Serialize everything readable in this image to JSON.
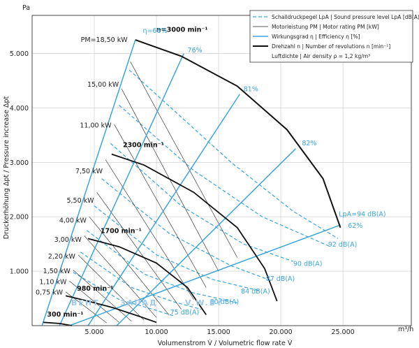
{
  "chart_data": {
    "type": "line",
    "title": "",
    "xlabel": "Volumenstrom V̇ / Volumetric flow rate V̇",
    "ylabel": "Druckerhöhung Δpt / Pressure increase Δpt",
    "x_unit": "m³/h",
    "y_unit": "Pa",
    "xlim": [
      0,
      30500
    ],
    "ylim": [
      0,
      5700
    ],
    "x_ticks": [
      {
        "value": 5000,
        "label": "5.000"
      },
      {
        "value": 10000,
        "label": "10.000"
      },
      {
        "value": 15000,
        "label": "15.000"
      },
      {
        "value": 20000,
        "label": "20.000"
      },
      {
        "value": 25000,
        "label": "25.000"
      }
    ],
    "y_ticks": [
      {
        "value": 1000,
        "label": "1.000"
      },
      {
        "value": 2000,
        "label": "2.000"
      },
      {
        "value": 3000,
        "label": "3.000"
      },
      {
        "value": 4000,
        "label": "4.000"
      },
      {
        "value": 5000,
        "label": "5.000"
      }
    ],
    "grid": true,
    "legend_position": "top-right",
    "legend": [
      {
        "style": "dashed-blue",
        "text": "Schalldruckpegel LpA | Sound pressure level LpA [dB(A)]"
      },
      {
        "style": "thin-black",
        "text": "Motorleistung PM | Motor rating PM [kW]"
      },
      {
        "style": "solid-blue",
        "text": "Wirkungsgrad η | Efficiency η [%]"
      },
      {
        "style": "thick-black",
        "text": "Drehzahl n | Number of revolutions n [min⁻¹]"
      },
      {
        "style": "none",
        "text": "Luftdichte | Air density ρ = 1,2 kg/m³"
      }
    ],
    "speed_curves": [
      {
        "label": "300 min⁻¹",
        "points": [
          [
            900,
            60
          ],
          [
            2200,
            40
          ],
          [
            3200,
            0
          ]
        ]
      },
      {
        "label": "980 min⁻¹",
        "points": [
          [
            2700,
            550
          ],
          [
            4500,
            450
          ],
          [
            6500,
            330
          ],
          [
            8500,
            180
          ],
          [
            10000,
            60
          ]
        ]
      },
      {
        "label": "1700 min⁻¹",
        "points": [
          [
            4500,
            1600
          ],
          [
            7000,
            1450
          ],
          [
            10000,
            1150
          ],
          [
            12500,
            700
          ],
          [
            14000,
            200
          ]
        ]
      },
      {
        "label": "2300 min⁻¹",
        "points": [
          [
            6400,
            3150
          ],
          [
            9000,
            2950
          ],
          [
            13000,
            2450
          ],
          [
            16500,
            1800
          ],
          [
            18700,
            1050
          ],
          [
            19700,
            450
          ]
        ]
      },
      {
        "label": "3000 min⁻¹",
        "points": [
          [
            8300,
            5250
          ],
          [
            12000,
            4950
          ],
          [
            16500,
            4400
          ],
          [
            20500,
            3600
          ],
          [
            23400,
            2700
          ],
          [
            24800,
            1800
          ]
        ]
      }
    ],
    "efficiency_lines": [
      {
        "label": "η=66%",
        "points": [
          [
            800,
            0
          ],
          [
            8300,
            5250
          ]
        ]
      },
      {
        "label": "76%",
        "points": [
          [
            2200,
            0
          ],
          [
            12200,
            5000
          ]
        ]
      },
      {
        "label": "81%",
        "points": [
          [
            4500,
            0
          ],
          [
            16700,
            4250
          ]
        ]
      },
      {
        "label": "82%",
        "points": [
          [
            6800,
            0
          ],
          [
            21200,
            3250
          ]
        ]
      },
      {
        "label": "62%",
        "points": [
          [
            3000,
            0
          ],
          [
            24800,
            1850
          ]
        ]
      }
    ],
    "power_labels": [
      {
        "text": "PM=18,50 kW",
        "value_kw": 18.5,
        "y": 5250
      },
      {
        "text": "15,00 kW",
        "value_kw": 15.0,
        "y": 4430
      },
      {
        "text": "11,00 kW",
        "value_kw": 11.0,
        "y": 3680
      },
      {
        "text": "7,50 kW",
        "value_kw": 7.5,
        "y": 2840
      },
      {
        "text": "5,50 kW",
        "value_kw": 5.5,
        "y": 2300
      },
      {
        "text": "4,00 kW",
        "value_kw": 4.0,
        "y": 1930
      },
      {
        "text": "3,00 kW",
        "value_kw": 3.0,
        "y": 1580
      },
      {
        "text": "2,20 kW",
        "value_kw": 2.2,
        "y": 1270
      },
      {
        "text": "1,50 kW",
        "value_kw": 1.5,
        "y": 1000
      },
      {
        "text": "1,10 kW",
        "value_kw": 1.1,
        "y": 800
      },
      {
        "text": "0,75 kW",
        "value_kw": 0.75,
        "y": 610
      }
    ],
    "power_lines": [
      {
        "points": [
          [
            7900,
            4850
          ],
          [
            16500,
            1250
          ]
        ]
      },
      {
        "points": [
          [
            7200,
            4350
          ],
          [
            15000,
            1000
          ]
        ]
      },
      {
        "points": [
          [
            6600,
            3700
          ],
          [
            14000,
            700
          ]
        ]
      },
      {
        "points": [
          [
            5900,
            3050
          ],
          [
            13000,
            480
          ]
        ]
      },
      {
        "points": [
          [
            5200,
            2450
          ],
          [
            12000,
            300
          ]
        ]
      },
      {
        "points": [
          [
            4600,
            2000
          ],
          [
            11000,
            200
          ]
        ]
      },
      {
        "points": [
          [
            4200,
            1650
          ],
          [
            10000,
            150
          ]
        ]
      },
      {
        "points": [
          [
            3700,
            1300
          ],
          [
            9000,
            100
          ]
        ]
      },
      {
        "points": [
          [
            3300,
            1020
          ],
          [
            8000,
            80
          ]
        ]
      },
      {
        "points": [
          [
            3000,
            820
          ],
          [
            7000,
            60
          ]
        ]
      },
      {
        "points": [
          [
            2700,
            620
          ],
          [
            6000,
            50
          ]
        ]
      }
    ],
    "sound_lines": [
      {
        "label": "LpA=94 dB(A)",
        "points": [
          [
            7800,
            4700
          ],
          [
            16000,
            3000
          ],
          [
            21000,
            2100
          ],
          [
            24600,
            1600
          ]
        ]
      },
      {
        "label": "92 dB(A)",
        "points": [
          [
            7000,
            4050
          ],
          [
            13000,
            2850
          ],
          [
            18500,
            2000
          ],
          [
            24000,
            1450
          ]
        ]
      },
      {
        "label": "90 dB(A)",
        "points": [
          [
            6300,
            3350
          ],
          [
            12000,
            2200
          ],
          [
            17000,
            1500
          ],
          [
            21000,
            1180
          ]
        ]
      },
      {
        "label": "",
        "points": [
          [
            5600,
            2700
          ],
          [
            11000,
            1700
          ],
          [
            16000,
            1100
          ],
          [
            19200,
            830
          ]
        ]
      },
      {
        "label": "87 dB(A)",
        "points": [
          [
            5000,
            2200
          ],
          [
            10000,
            1300
          ],
          [
            14500,
            850
          ],
          [
            18300,
            640
          ]
        ]
      },
      {
        "label": "84 dB(A)",
        "points": [
          [
            4400,
            1750
          ],
          [
            9000,
            950
          ],
          [
            13000,
            600
          ],
          [
            16500,
            420
          ]
        ]
      },
      {
        "label": "80 dB(A)",
        "points": [
          [
            3900,
            1350
          ],
          [
            8000,
            700
          ],
          [
            11500,
            430
          ],
          [
            13600,
            300
          ]
        ]
      },
      {
        "label": "75 dB(A)",
        "points": [
          [
            3300,
            980
          ],
          [
            7000,
            480
          ],
          [
            10000,
            280
          ],
          [
            11500,
            170
          ]
        ]
      }
    ],
    "curve_labels": [
      {
        "text": "n=3000 min⁻¹",
        "x": 10000,
        "y": 5400
      },
      {
        "text": "2300 min⁻¹",
        "x": 7300,
        "y": 3280
      },
      {
        "text": "1700 min⁻¹",
        "x": 5500,
        "y": 1700
      },
      {
        "text": "980 min⁻¹",
        "x": 3600,
        "y": 640
      },
      {
        "text": "300 min⁻¹",
        "x": 1200,
        "y": 170
      }
    ],
    "efficiency_labels": [
      {
        "text": "η=66%",
        "x": 8900,
        "y": 5380
      },
      {
        "text": "76%",
        "x": 12500,
        "y": 5020
      },
      {
        "text": "81%",
        "x": 17000,
        "y": 4310
      },
      {
        "text": "82%",
        "x": 21700,
        "y": 3310
      },
      {
        "text": "62%",
        "x": 25400,
        "y": 1800
      }
    ],
    "sound_labels": [
      {
        "text": "LpA=94 dB(A)",
        "x": 25200,
        "y": 2010
      },
      {
        "text": "92 dB(A)",
        "x": 23800,
        "y": 1450
      },
      {
        "text": "90 dB(A)",
        "x": 21000,
        "y": 1100
      },
      {
        "text": "87 dB(A)",
        "x": 18800,
        "y": 820
      },
      {
        "text": "84 dB(A)",
        "x": 16800,
        "y": 590
      },
      {
        "text": "80 dB(A)",
        "x": 14300,
        "y": 400
      },
      {
        "text": "75 dB(A)",
        "x": 11100,
        "y": 205
      }
    ]
  },
  "watermark": {
    "left": "ВЕНТ",
    "right": "ЗАПАД",
    "domain": "V.W.BY"
  }
}
